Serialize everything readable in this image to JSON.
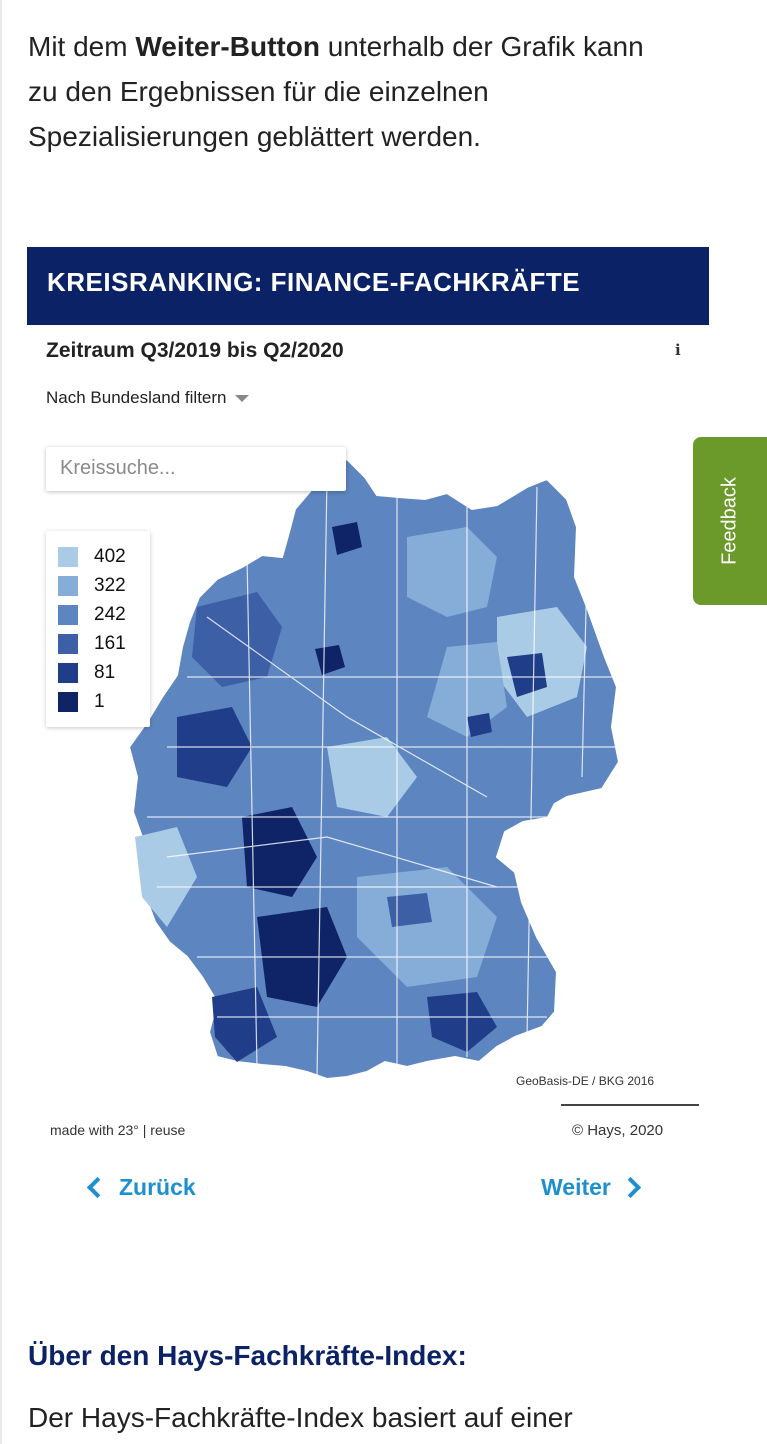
{
  "intro": {
    "pre": "Mit dem ",
    "bold": "Weiter-Button",
    "post": " unterhalb der Grafik kann zu den Ergebnissen für die einzelnen Spezialisierungen geblättert werden."
  },
  "widget": {
    "title": "KREISRANKING: FINANCE-FACHKRÄFTE",
    "period": "Zeitraum Q3/2019 bis Q2/2020",
    "info_icon": "i",
    "filter_label": "Nach Bundesland filtern",
    "search_placeholder": "Kreissuche...",
    "legend": [
      {
        "label": "402",
        "color": "#a9cbe6"
      },
      {
        "label": "322",
        "color": "#86acd8"
      },
      {
        "label": "242",
        "color": "#5d85bf"
      },
      {
        "label": "161",
        "color": "#3c5fa5"
      },
      {
        "label": "81",
        "color": "#1f3d88"
      },
      {
        "label": "1",
        "color": "#0e2466"
      }
    ],
    "map_source": "GeoBasis-DE / BKG 2016",
    "made_with": "made with 23° | reuse",
    "copyright": "© Hays, 2020",
    "prev_label": "Zurück",
    "next_label": "Weiter"
  },
  "feedback_label": "Feedback",
  "section": {
    "heading": "Über den Hays-Fachkräfte-Index:",
    "body": "Der Hays-Fachkräfte-Index basiert auf einer"
  },
  "colors": {
    "brand_navy": "#0b2266",
    "link_blue": "#1e90cf",
    "feedback_green": "#6c9a2a"
  }
}
